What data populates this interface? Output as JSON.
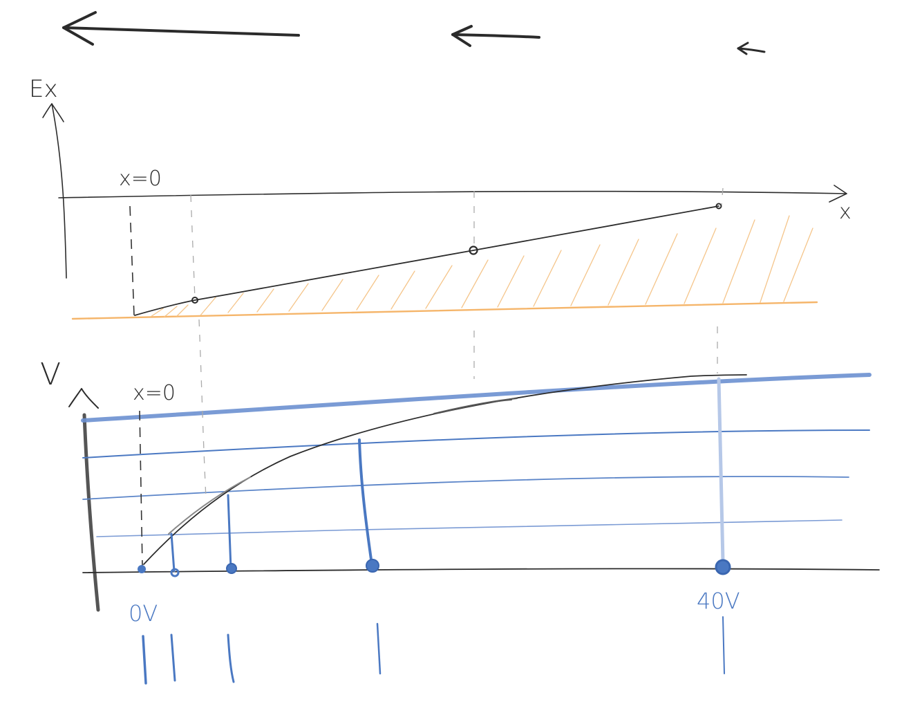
{
  "labels": {
    "ex_axis": "Ex",
    "x_axis": "x",
    "v_axis": "V",
    "x_zero_top": "x=0",
    "x_zero_bottom": "x=0",
    "potential_start": "0V",
    "potential_end": "40V"
  },
  "colors": {
    "ink": "#2b2b2b",
    "charge_orange": "#f5b56a",
    "equipotential_blue": "#4a78c2",
    "equipotential_light": "#9db6e0"
  }
}
